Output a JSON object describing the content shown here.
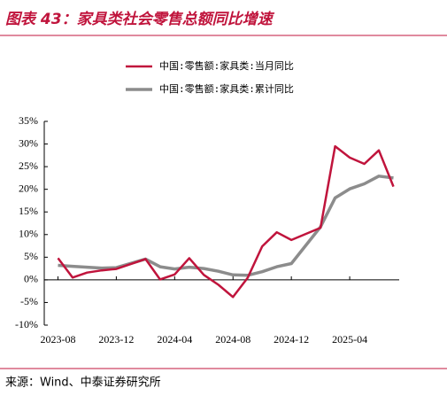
{
  "chart_data": {
    "type": "line",
    "title": "图表 43：家具类社会零售总额同比增速",
    "source": "来源：Wind、中泰证券研究所",
    "x": [
      "2023-08",
      "2023-09",
      "2023-10",
      "2023-11",
      "2023-12",
      "2024-02",
      "2024-03",
      "2024-04",
      "2024-05",
      "2024-06",
      "2024-07",
      "2024-08",
      "2024-09",
      "2024-10",
      "2024-11",
      "2024-12",
      "2025-02",
      "2025-03",
      "2025-04",
      "2025-05",
      "2025-06",
      "2025-07"
    ],
    "series": [
      {
        "name": "中国:零售额:家具类:当月同比",
        "color": "#c0143c",
        "values": [
          4.8,
          0.5,
          1.6,
          2.1,
          2.4,
          4.6,
          0.1,
          1.2,
          4.8,
          1.1,
          -1.1,
          -3.8,
          0.4,
          7.4,
          10.5,
          8.8,
          11.5,
          29.5,
          27.0,
          25.6,
          28.6,
          20.6
        ]
      },
      {
        "name": "中国:零售额:家具类:累计同比",
        "color": "#8c8c8c",
        "values": [
          3.2,
          3.0,
          2.8,
          2.6,
          2.7,
          4.6,
          2.9,
          2.4,
          2.8,
          2.5,
          1.9,
          1.1,
          1.0,
          1.8,
          2.9,
          3.6,
          11.7,
          18.1,
          20.1,
          21.2,
          22.9,
          22.5
        ]
      }
    ],
    "xlim": [
      "2023-07",
      "2025-08"
    ],
    "xticks": [
      "2023-08",
      "2023-12",
      "2024-04",
      "2024-08",
      "2024-12",
      "2025-04"
    ],
    "ylim": [
      -10,
      35
    ],
    "yticks": [
      {
        "value": -10,
        "label": "-10%"
      },
      {
        "value": -5,
        "label": "-5%"
      },
      {
        "value": 0,
        "label": "0%"
      },
      {
        "value": 5,
        "label": "5%"
      },
      {
        "value": 10,
        "label": "10%"
      },
      {
        "value": 15,
        "label": "15%"
      },
      {
        "value": 20,
        "label": "20%"
      },
      {
        "value": 25,
        "label": "25%"
      },
      {
        "value": 30,
        "label": "30%"
      },
      {
        "value": 35,
        "label": "35%"
      }
    ]
  }
}
